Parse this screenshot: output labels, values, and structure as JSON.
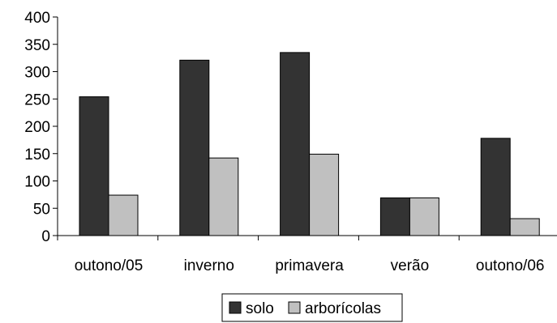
{
  "chart_data": {
    "type": "bar",
    "categories": [
      "outono/05",
      "inverno",
      "primavera",
      "verão",
      "outono/06"
    ],
    "series": [
      {
        "name": "solo",
        "values": [
          254,
          321,
          335,
          69,
          178
        ],
        "color": "#333333"
      },
      {
        "name": "arborícolas",
        "values": [
          74,
          142,
          149,
          69,
          31
        ],
        "color": "#c0c0c0"
      }
    ],
    "ylim": [
      0,
      400
    ],
    "yticks": [
      0,
      50,
      100,
      150,
      200,
      250,
      300,
      350,
      400
    ],
    "ytick_labels": [
      "0",
      "50",
      "100",
      "150",
      "200",
      "250",
      "300",
      "350",
      "400"
    ],
    "title": "",
    "xlabel": "",
    "ylabel": "",
    "grid": false,
    "legend_position": "bottom"
  }
}
